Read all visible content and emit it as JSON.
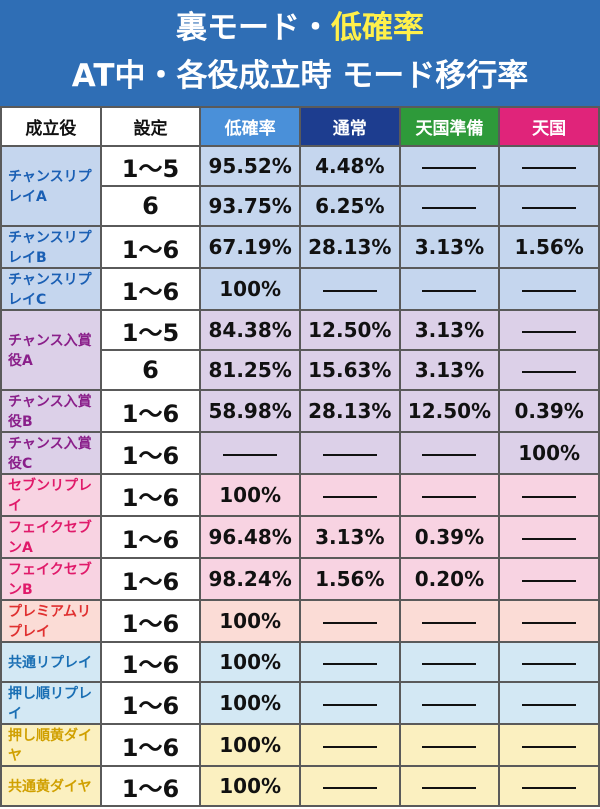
{
  "title": {
    "line1_prefix": "裏モード・",
    "line1_highlight": "低確率",
    "line2": "AT中・各役成立時 モード移行率"
  },
  "headers": [
    {
      "label": "成立役",
      "bg": "#ffffff",
      "fg": "#111111"
    },
    {
      "label": "設定",
      "bg": "#ffffff",
      "fg": "#111111"
    },
    {
      "label": "低確率",
      "bg": "#4a90d9",
      "fg": "#ffffff"
    },
    {
      "label": "通常",
      "bg": "#1d3d8f",
      "fg": "#ffffff"
    },
    {
      "label": "天国準備",
      "bg": "#2e9a3a",
      "fg": "#ffffff"
    },
    {
      "label": "天国",
      "bg": "#e0247a",
      "fg": "#ffffff"
    }
  ],
  "dash_symbol": "—",
  "groups": [
    {
      "role": "チャンスリプレイA",
      "role_color": "#1a5fb4",
      "bg": "#c5d6ee",
      "rows": [
        {
          "setting": "1～5",
          "values": [
            "95.52%",
            "4.48%",
            "—",
            "—"
          ]
        },
        {
          "setting": "6",
          "values": [
            "93.75%",
            "6.25%",
            "—",
            "—"
          ]
        }
      ]
    },
    {
      "role": "チャンスリプレイB",
      "role_color": "#1a5fb4",
      "bg": "#c5d6ee",
      "rows": [
        {
          "setting": "1～6",
          "values": [
            "67.19%",
            "28.13%",
            "3.13%",
            "1.56%"
          ]
        }
      ]
    },
    {
      "role": "チャンスリプレイC",
      "role_color": "#1a5fb4",
      "bg": "#c5d6ee",
      "rows": [
        {
          "setting": "1～6",
          "values": [
            "100%",
            "—",
            "—",
            "—"
          ]
        }
      ]
    },
    {
      "role": "チャンス入賞役A",
      "role_color": "#8a1f8a",
      "bg": "#dcd0e8",
      "rows": [
        {
          "setting": "1～5",
          "values": [
            "84.38%",
            "12.50%",
            "3.13%",
            "—"
          ]
        },
        {
          "setting": "6",
          "values": [
            "81.25%",
            "15.63%",
            "3.13%",
            "—"
          ]
        }
      ]
    },
    {
      "role": "チャンス入賞役B",
      "role_color": "#8a1f8a",
      "bg": "#dcd0e8",
      "rows": [
        {
          "setting": "1～6",
          "values": [
            "58.98%",
            "28.13%",
            "12.50%",
            "0.39%"
          ]
        }
      ]
    },
    {
      "role": "チャンス入賞役C",
      "role_color": "#8a1f8a",
      "bg": "#dcd0e8",
      "rows": [
        {
          "setting": "1～6",
          "values": [
            "—",
            "—",
            "—",
            "100%"
          ]
        }
      ]
    },
    {
      "role": "セブンリプレイ",
      "role_color": "#e01a6a",
      "bg": "#f8d3e2",
      "rows": [
        {
          "setting": "1～6",
          "values": [
            "100%",
            "—",
            "—",
            "—"
          ]
        }
      ]
    },
    {
      "role": "フェイクセブンA",
      "role_color": "#e01a6a",
      "bg": "#f8d3e2",
      "rows": [
        {
          "setting": "1～6",
          "values": [
            "96.48%",
            "3.13%",
            "0.39%",
            "—"
          ]
        }
      ]
    },
    {
      "role": "フェイクセブンB",
      "role_color": "#e01a6a",
      "bg": "#f8d3e2",
      "rows": [
        {
          "setting": "1～6",
          "values": [
            "98.24%",
            "1.56%",
            "0.20%",
            "—"
          ]
        }
      ]
    },
    {
      "role": "プレミアムリプレイ",
      "role_color": "#e03030",
      "bg": "#fbdcd6",
      "rows": [
        {
          "setting": "1～6",
          "values": [
            "100%",
            "—",
            "—",
            "—"
          ]
        }
      ]
    },
    {
      "role": "共通リプレイ",
      "role_color": "#1a6fb4",
      "bg": "#d3e8f4",
      "rows": [
        {
          "setting": "1～6",
          "values": [
            "100%",
            "—",
            "—",
            "—"
          ]
        }
      ]
    },
    {
      "role": "押し順リプレイ",
      "role_color": "#1a6fb4",
      "bg": "#d3e8f4",
      "rows": [
        {
          "setting": "1～6",
          "values": [
            "100%",
            "—",
            "—",
            "—"
          ]
        }
      ]
    },
    {
      "role": "押し順黄ダイヤ",
      "role_color": "#d0a000",
      "bg": "#fbf0c0",
      "rows": [
        {
          "setting": "1～6",
          "values": [
            "100%",
            "—",
            "—",
            "—"
          ]
        }
      ]
    },
    {
      "role": "共通黄ダイヤ",
      "role_color": "#d0a000",
      "bg": "#fbf0c0",
      "rows": [
        {
          "setting": "1～6",
          "values": [
            "100%",
            "—",
            "—",
            "—"
          ]
        }
      ]
    }
  ]
}
